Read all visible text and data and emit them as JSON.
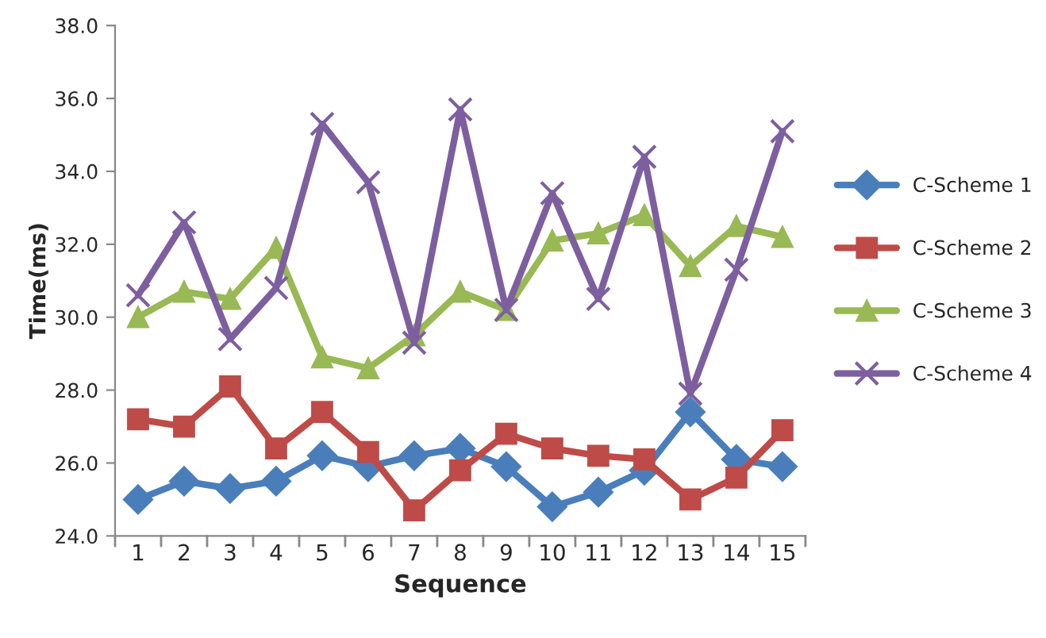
{
  "chart_data": {
    "type": "line",
    "xlabel": "Sequence",
    "ylabel": "Time(ms)",
    "categories": [
      "1",
      "2",
      "3",
      "4",
      "5",
      "6",
      "7",
      "8",
      "9",
      "10",
      "11",
      "12",
      "13",
      "14",
      "15"
    ],
    "ylim": [
      24.0,
      38.0
    ],
    "yticks": [
      {
        "value": 24,
        "label": "24.0"
      },
      {
        "value": 26,
        "label": "26.0"
      },
      {
        "value": 28,
        "label": "28.0"
      },
      {
        "value": 30,
        "label": "30.0"
      },
      {
        "value": 32,
        "label": "32.0"
      },
      {
        "value": 34,
        "label": "34.0"
      },
      {
        "value": 36,
        "label": "36.0"
      },
      {
        "value": 38,
        "label": "38.0"
      }
    ],
    "grid": false,
    "legend": "right",
    "series": [
      {
        "name": "C-Scheme 1",
        "color": "#4a7ebb",
        "marker": "diamond",
        "values": [
          25.0,
          25.5,
          25.3,
          25.5,
          26.2,
          25.9,
          26.2,
          26.4,
          25.9,
          24.8,
          25.2,
          25.8,
          27.4,
          26.1,
          25.9
        ]
      },
      {
        "name": "C-Scheme 2",
        "color": "#be4b48",
        "marker": "square",
        "values": [
          27.2,
          27.0,
          28.1,
          26.4,
          27.4,
          26.3,
          24.7,
          25.8,
          26.8,
          26.4,
          26.2,
          26.1,
          25.0,
          25.6,
          26.9
        ]
      },
      {
        "name": "C-Scheme 3",
        "color": "#98b954",
        "marker": "triangle",
        "values": [
          30.0,
          30.7,
          30.5,
          31.9,
          28.9,
          28.6,
          29.5,
          30.7,
          30.2,
          32.1,
          32.3,
          32.8,
          31.4,
          32.5,
          32.2
        ]
      },
      {
        "name": "C-Scheme 4",
        "color": "#7d5fa0",
        "marker": "cross",
        "values": [
          30.6,
          32.6,
          29.4,
          30.8,
          35.3,
          33.7,
          29.3,
          35.7,
          30.2,
          33.4,
          30.5,
          34.4,
          27.9,
          31.3,
          35.1
        ]
      }
    ]
  }
}
